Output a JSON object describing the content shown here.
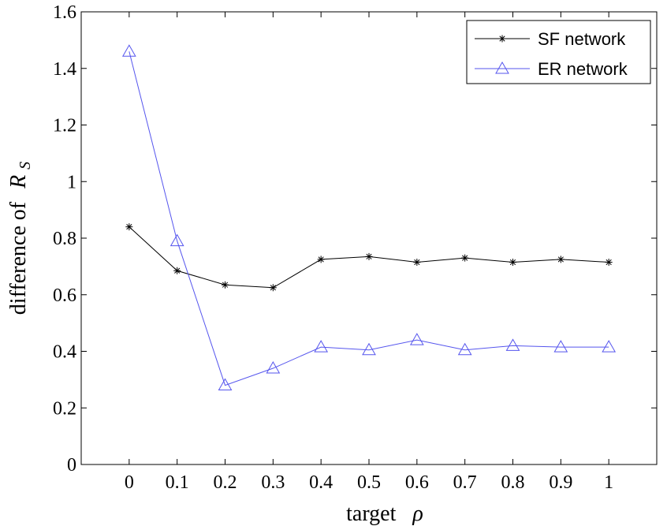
{
  "chart_data": {
    "type": "line",
    "title": "",
    "xlabel": "target",
    "xlabel_symbol": "ρ",
    "ylabel": "difference of",
    "ylabel_symbol": "R",
    "ylabel_subscript": "S",
    "x": [
      0,
      0.1,
      0.2,
      0.3,
      0.4,
      0.5,
      0.6,
      0.7,
      0.8,
      0.9,
      1
    ],
    "xlim": [
      -0.1,
      1.1
    ],
    "ylim": [
      0,
      1.6
    ],
    "xticks": [
      "0",
      "0.1",
      "0.2",
      "0.3",
      "0.4",
      "0.5",
      "0.6",
      "0.7",
      "0.8",
      "0.9",
      "1"
    ],
    "yticks": [
      "0",
      "0.2",
      "0.4",
      "0.6",
      "0.8",
      "1",
      "1.2",
      "1.4",
      "1.6"
    ],
    "grid": false,
    "legend_position": "top-right",
    "series": [
      {
        "name": "SF network",
        "marker": "star",
        "color": "#000000",
        "values": [
          0.84,
          0.685,
          0.635,
          0.625,
          0.725,
          0.735,
          0.715,
          0.73,
          0.715,
          0.725,
          0.715
        ]
      },
      {
        "name": "ER network",
        "marker": "triangle",
        "color": "#5555ee",
        "values": [
          1.46,
          0.79,
          0.28,
          0.34,
          0.415,
          0.405,
          0.44,
          0.405,
          0.42,
          0.415,
          0.415
        ]
      }
    ]
  }
}
